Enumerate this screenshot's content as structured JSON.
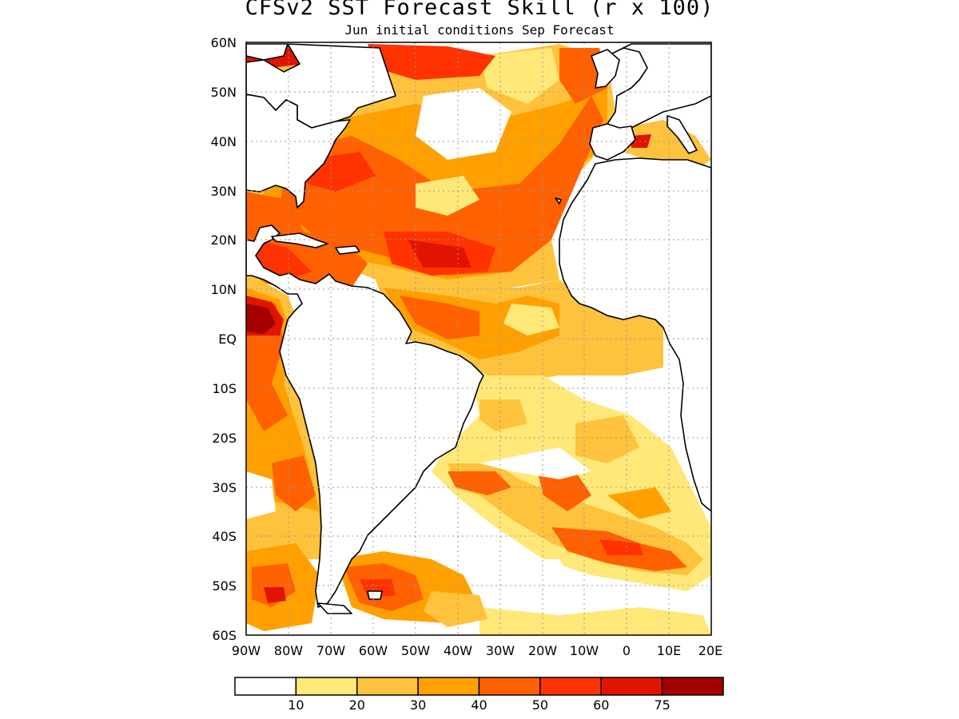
{
  "title": "CFSv2 SST Forecast Skill (r x 100)",
  "subtitle": "Jun initial conditions  Sep Forecast",
  "map": {
    "lon_range": [
      -90,
      20
    ],
    "lat_range": [
      -60,
      60
    ],
    "lat_labels": [
      "60N",
      "50N",
      "40N",
      "30N",
      "20N",
      "10N",
      "EQ",
      "10S",
      "20S",
      "30S",
      "40S",
      "50S",
      "60S"
    ],
    "lon_labels": [
      "90W",
      "80W",
      "70W",
      "60W",
      "50W",
      "40W",
      "30W",
      "20W",
      "10W",
      "0",
      "10E",
      "20E"
    ],
    "grid": "dotted",
    "land_fill": "#ffffff",
    "coastline_color": "#000000"
  },
  "legend": {
    "colors": [
      "#ffffff",
      "#ffe878",
      "#ffc23c",
      "#ffa000",
      "#ff6000",
      "#ff3200",
      "#e11400",
      "#a50000"
    ],
    "labels": [
      "10",
      "20",
      "30",
      "40",
      "50",
      "60",
      "75"
    ]
  }
}
